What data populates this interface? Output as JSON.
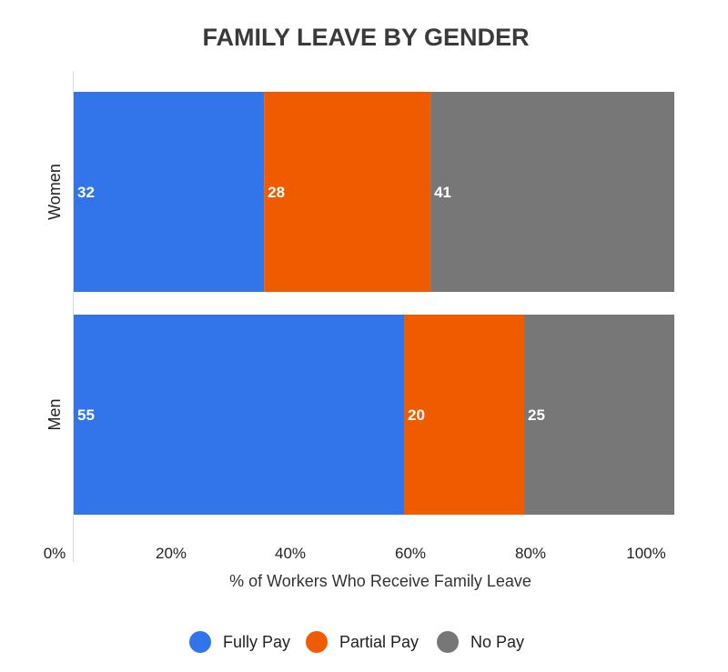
{
  "chart_data": {
    "type": "bar",
    "orientation": "horizontal",
    "stacked": true,
    "title": "FAMILY LEAVE BY GENDER",
    "xlabel": "% of Workers Who Receive Family Leave",
    "ylabel": "",
    "categories": [
      "Women",
      "Men"
    ],
    "series": [
      {
        "name": "Fully Pay",
        "values": [
          32,
          55
        ],
        "color": "#3275ea"
      },
      {
        "name": "Partial Pay",
        "values": [
          28,
          20
        ],
        "color": "#f15b00"
      },
      {
        "name": "No Pay",
        "values": [
          41,
          25
        ],
        "color": "#777777"
      }
    ],
    "xlim": [
      0,
      100
    ],
    "xticks": [
      "0%",
      "20%",
      "40%",
      "60%",
      "80%",
      "100%"
    ],
    "grid": false,
    "legend": "bottom"
  }
}
